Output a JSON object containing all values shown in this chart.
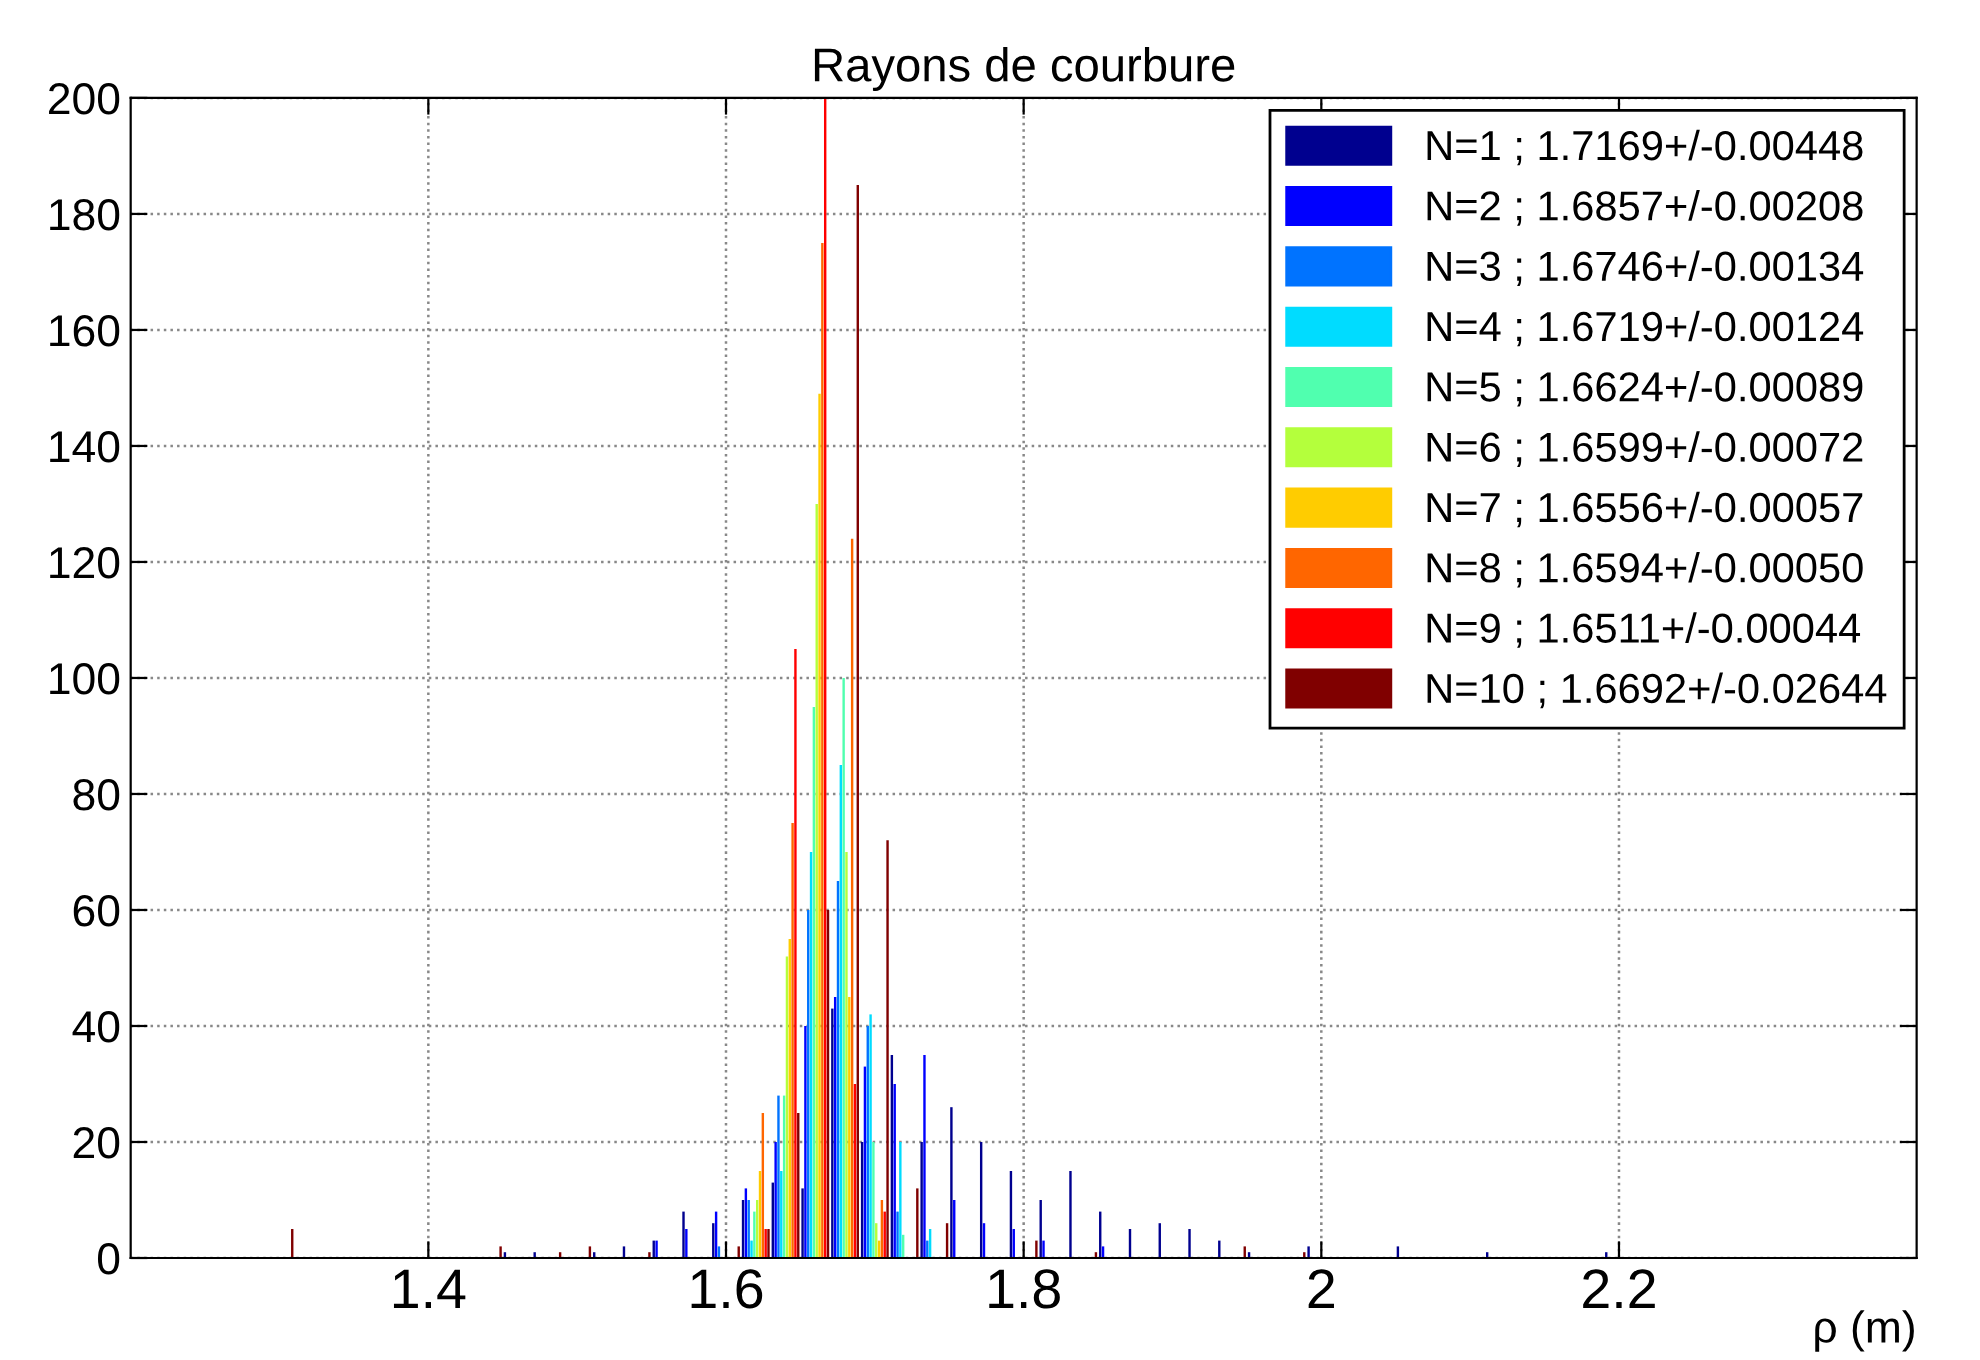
{
  "chart_data": {
    "type": "bar",
    "title": "Rayons de courbure",
    "xlabel": "ρ (m)",
    "xlim": [
      1.2,
      2.4
    ],
    "xticks": [
      1.4,
      1.6,
      1.8,
      2,
      2.2
    ],
    "ylim": [
      0,
      200
    ],
    "yticks": [
      0,
      20,
      40,
      60,
      80,
      100,
      120,
      140,
      160,
      180,
      200
    ],
    "grid": true,
    "legend": "top right",
    "series": [
      {
        "name": "N=1 ; 1.7169+/-0.00448",
        "color": "#00008f",
        "x": [
          1.46,
          1.48,
          1.52,
          1.54,
          1.56,
          1.58,
          1.6,
          1.62,
          1.64,
          1.66,
          1.68,
          1.7,
          1.72,
          1.74,
          1.76,
          1.78,
          1.8,
          1.82,
          1.84,
          1.86,
          1.88,
          1.9,
          1.92,
          1.94,
          1.96,
          2.0,
          2.06,
          2.12,
          2.2
        ],
        "values": [
          1,
          1,
          1,
          2,
          3,
          8,
          6,
          10,
          13,
          12,
          43,
          20,
          35,
          20,
          26,
          20,
          15,
          10,
          15,
          8,
          5,
          6,
          5,
          3,
          1,
          2,
          2,
          1,
          1
        ]
      },
      {
        "name": "N=2 ; 1.6857+/-0.00208",
        "color": "#0000ff",
        "x": [
          1.56,
          1.58,
          1.6,
          1.62,
          1.64,
          1.66,
          1.68,
          1.7,
          1.72,
          1.74,
          1.76,
          1.78,
          1.8,
          1.82,
          1.86
        ],
        "values": [
          3,
          5,
          8,
          12,
          20,
          40,
          45,
          33,
          30,
          35,
          10,
          6,
          5,
          3,
          2
        ]
      },
      {
        "name": "N=3 ; 1.6746+/-0.00134",
        "color": "#0073ff",
        "x": [
          1.6,
          1.62,
          1.64,
          1.66,
          1.68,
          1.7,
          1.72,
          1.74
        ],
        "values": [
          2,
          10,
          28,
          60,
          65,
          40,
          8,
          3
        ]
      },
      {
        "name": "N=4 ; 1.6719+/-0.00124",
        "color": "#00dcff",
        "x": [
          1.62,
          1.64,
          1.66,
          1.68,
          1.7,
          1.72,
          1.74
        ],
        "values": [
          3,
          15,
          70,
          85,
          42,
          20,
          5
        ]
      },
      {
        "name": "N=5 ; 1.6624+/-0.00089",
        "color": "#50ffaf",
        "x": [
          1.62,
          1.64,
          1.66,
          1.68,
          1.7,
          1.72
        ],
        "values": [
          8,
          28,
          95,
          100,
          20,
          4
        ]
      },
      {
        "name": "N=6 ; 1.6599+/-0.00072",
        "color": "#b4ff3c",
        "x": [
          1.62,
          1.64,
          1.66,
          1.68,
          1.7
        ],
        "values": [
          10,
          52,
          130,
          70,
          6
        ]
      },
      {
        "name": "N=7 ; 1.6556+/-0.00057",
        "color": "#ffcc00",
        "x": [
          1.62,
          1.64,
          1.66,
          1.68,
          1.7
        ],
        "values": [
          15,
          55,
          149,
          45,
          3
        ]
      },
      {
        "name": "N=8 ; 1.6594+/-0.00050",
        "color": "#ff6600",
        "x": [
          1.62,
          1.64,
          1.66,
          1.68,
          1.7
        ],
        "values": [
          25,
          75,
          175,
          124,
          10
        ]
      },
      {
        "name": "N=9 ; 1.6511+/-0.00044",
        "color": "#ff0000",
        "x": [
          1.62,
          1.64,
          1.66,
          1.68,
          1.7
        ],
        "values": [
          5,
          105,
          200,
          30,
          8
        ]
      },
      {
        "name": "N=10 ; 1.6692+/-0.02644",
        "color": "#800000",
        "x": [
          1.3,
          1.44,
          1.48,
          1.5,
          1.54,
          1.6,
          1.62,
          1.64,
          1.66,
          1.68,
          1.7,
          1.72,
          1.74,
          1.8,
          1.84,
          1.94,
          1.98
        ],
        "values": [
          5,
          2,
          1,
          2,
          1,
          2,
          5,
          25,
          60,
          185,
          72,
          12,
          6,
          3,
          1,
          2,
          1
        ]
      }
    ]
  }
}
